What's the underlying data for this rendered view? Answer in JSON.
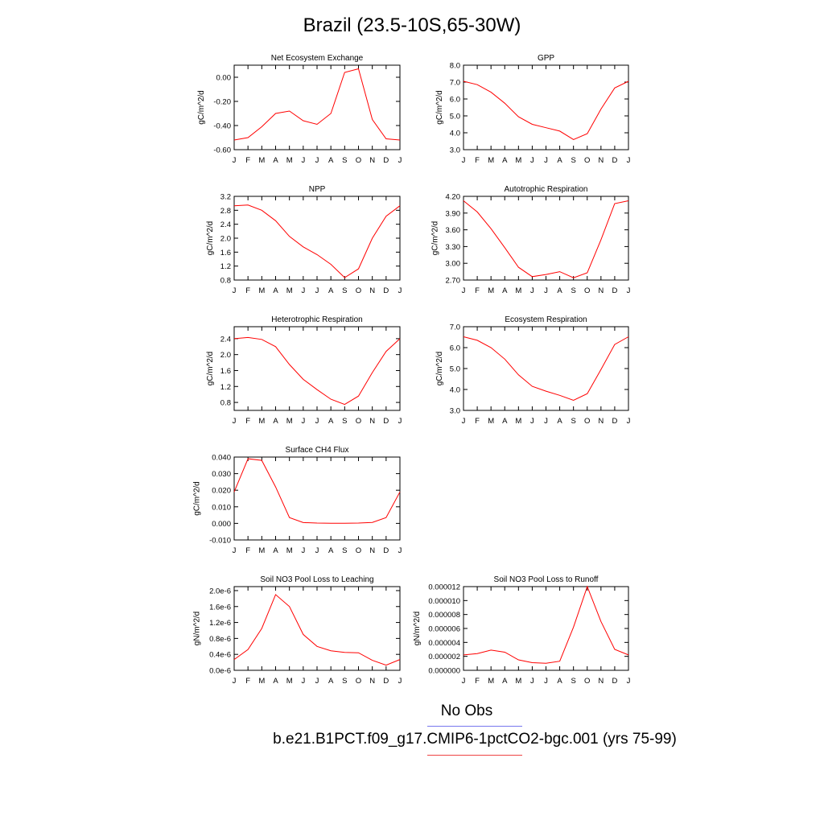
{
  "title": "Brazil (23.5-10S,65-30W)",
  "legend": {
    "items": [
      {
        "label": "No Obs",
        "color": "#7777ee"
      },
      {
        "label": "b.e21.B1PCT.f09_g17.CMIP6-1pctCO2-bgc.001 (yrs 75-99)",
        "color": "#ee4444"
      }
    ]
  },
  "chart_data": [
    {
      "type": "line",
      "title": "Net Ecosystem Exchange",
      "ylabel": "gC/m^2/d",
      "x": [
        "J",
        "F",
        "M",
        "A",
        "M",
        "J",
        "J",
        "A",
        "S",
        "O",
        "N",
        "D",
        "J"
      ],
      "ylim": [
        -0.6,
        0.1
      ],
      "yticks": [
        "0.00",
        "-0.20",
        "-0.40",
        "-0.60"
      ],
      "ytick_values": [
        0.0,
        -0.2,
        -0.4,
        -0.6
      ],
      "series": [
        {
          "color": "#ff0000",
          "values": [
            -0.52,
            -0.5,
            -0.41,
            -0.3,
            -0.28,
            -0.36,
            -0.39,
            -0.3,
            0.04,
            0.07,
            -0.35,
            -0.51,
            -0.52
          ]
        }
      ]
    },
    {
      "type": "line",
      "title": "GPP",
      "ylabel": "gC/m^2/d",
      "x": [
        "J",
        "F",
        "M",
        "A",
        "M",
        "J",
        "J",
        "A",
        "S",
        "O",
        "N",
        "D",
        "J"
      ],
      "ylim": [
        3.0,
        8.0
      ],
      "yticks": [
        "8.0",
        "7.0",
        "6.0",
        "5.0",
        "4.0",
        "3.0"
      ],
      "ytick_values": [
        8,
        7,
        6,
        5,
        4,
        3
      ],
      "series": [
        {
          "color": "#ff0000",
          "values": [
            7.05,
            6.85,
            6.4,
            5.75,
            4.95,
            4.5,
            4.3,
            4.1,
            3.6,
            3.95,
            5.4,
            6.65,
            7.05
          ]
        }
      ]
    },
    {
      "type": "line",
      "title": "NPP",
      "ylabel": "gC/m^2/d",
      "x": [
        "J",
        "F",
        "M",
        "A",
        "M",
        "J",
        "J",
        "A",
        "S",
        "O",
        "N",
        "D",
        "J"
      ],
      "ylim": [
        0.8,
        3.2
      ],
      "yticks": [
        "3.2",
        "2.8",
        "2.4",
        "2.0",
        "1.6",
        "1.2",
        "0.8"
      ],
      "ytick_values": [
        3.2,
        2.8,
        2.4,
        2.0,
        1.6,
        1.2,
        0.8
      ],
      "series": [
        {
          "color": "#ff0000",
          "values": [
            2.93,
            2.95,
            2.8,
            2.5,
            2.05,
            1.75,
            1.53,
            1.25,
            0.87,
            1.12,
            2.0,
            2.63,
            2.93
          ]
        }
      ]
    },
    {
      "type": "line",
      "title": "Autotrophic Respiration",
      "ylabel": "gC/m^2/d",
      "x": [
        "J",
        "F",
        "M",
        "A",
        "M",
        "J",
        "J",
        "A",
        "S",
        "O",
        "N",
        "D",
        "J"
      ],
      "ylim": [
        2.7,
        4.2
      ],
      "yticks": [
        "4.20",
        "3.90",
        "3.60",
        "3.30",
        "3.00",
        "2.70"
      ],
      "ytick_values": [
        4.2,
        3.9,
        3.6,
        3.3,
        3.0,
        2.7
      ],
      "series": [
        {
          "color": "#ff0000",
          "values": [
            4.12,
            3.92,
            3.62,
            3.28,
            2.93,
            2.76,
            2.8,
            2.85,
            2.74,
            2.83,
            3.42,
            4.07,
            4.12
          ]
        }
      ]
    },
    {
      "type": "line",
      "title": "Heterotrophic Respiration",
      "ylabel": "gC/m^2/d",
      "x": [
        "J",
        "F",
        "M",
        "A",
        "M",
        "J",
        "J",
        "A",
        "S",
        "O",
        "N",
        "D",
        "J"
      ],
      "ylim": [
        0.6,
        2.7
      ],
      "yticks": [
        "2.4",
        "2.0",
        "1.6",
        "1.2",
        "0.8"
      ],
      "ytick_values": [
        2.4,
        2.0,
        1.6,
        1.2,
        0.8
      ],
      "series": [
        {
          "color": "#ff0000",
          "values": [
            2.4,
            2.43,
            2.38,
            2.2,
            1.75,
            1.38,
            1.12,
            0.88,
            0.75,
            0.96,
            1.55,
            2.08,
            2.4
          ]
        }
      ]
    },
    {
      "type": "line",
      "title": "Ecosystem Respiration",
      "ylabel": "gC/m^2/d",
      "x": [
        "J",
        "F",
        "M",
        "A",
        "M",
        "J",
        "J",
        "A",
        "S",
        "O",
        "N",
        "D",
        "J"
      ],
      "ylim": [
        3.0,
        7.0
      ],
      "yticks": [
        "7.0",
        "6.0",
        "5.0",
        "4.0",
        "3.0"
      ],
      "ytick_values": [
        7,
        6,
        5,
        4,
        3
      ],
      "series": [
        {
          "color": "#ff0000",
          "values": [
            6.52,
            6.35,
            6.0,
            5.45,
            4.7,
            4.15,
            3.92,
            3.72,
            3.48,
            3.8,
            4.95,
            6.15,
            6.52
          ]
        }
      ]
    },
    {
      "type": "line",
      "title": "Surface CH4 Flux",
      "ylabel": "gC/m^2/d",
      "x": [
        "J",
        "F",
        "M",
        "A",
        "M",
        "J",
        "J",
        "A",
        "S",
        "O",
        "N",
        "D",
        "J"
      ],
      "ylim": [
        -0.01,
        0.04
      ],
      "yticks": [
        "0.040",
        "0.030",
        "0.020",
        "0.010",
        "0.000",
        "-0.010"
      ],
      "ytick_values": [
        0.04,
        0.03,
        0.02,
        0.01,
        0.0,
        -0.01
      ],
      "series": [
        {
          "color": "#ff0000",
          "values": [
            0.019,
            0.039,
            0.038,
            0.022,
            0.0035,
            0.0005,
            0.0002,
            0.0001,
            0.0001,
            0.0002,
            0.0006,
            0.0035,
            0.019
          ]
        }
      ]
    },
    {
      "type": "line",
      "title": "Soil NO3 Pool Loss to Leaching",
      "ylabel": "gN/m^2/d",
      "x": [
        "J",
        "F",
        "M",
        "A",
        "M",
        "J",
        "J",
        "A",
        "S",
        "O",
        "N",
        "D",
        "J"
      ],
      "ylim": [
        0.0,
        2.1e-06
      ],
      "yticks": [
        "2.0e-6",
        "1.6e-6",
        "1.2e-6",
        "0.8e-6",
        "0.4e-6",
        "0.0e-6"
      ],
      "ytick_values": [
        2e-06,
        1.6e-06,
        1.2e-06,
        8e-07,
        4e-07,
        0.0
      ],
      "series": [
        {
          "color": "#ff0000",
          "values": [
            2.7e-07,
            5.2e-07,
            1.05e-06,
            1.9e-06,
            1.6e-06,
            9e-07,
            6e-07,
            4.9e-07,
            4.5e-07,
            4.4e-07,
            2.5e-07,
            1.3e-07,
            2.7e-07
          ]
        }
      ]
    },
    {
      "type": "line",
      "title": "Soil NO3 Pool Loss to Runoff",
      "ylabel": "gN/m^2/d",
      "x": [
        "J",
        "F",
        "M",
        "A",
        "M",
        "J",
        "J",
        "A",
        "S",
        "O",
        "N",
        "D",
        "J"
      ],
      "ylim": [
        0.0,
        1.2e-05
      ],
      "yticks": [
        "0.000012",
        "0.000010",
        "0.000008",
        "0.000006",
        "0.000004",
        "0.000002",
        "0.000000"
      ],
      "ytick_values": [
        1.2e-05,
        1e-05,
        8e-06,
        6e-06,
        4e-06,
        2e-06,
        0.0
      ],
      "series": [
        {
          "color": "#ff0000",
          "values": [
            2.2e-06,
            2.4e-06,
            2.9e-06,
            2.6e-06,
            1.5e-06,
            1.1e-06,
            1e-06,
            1.3e-06,
            6.2e-06,
            1.2e-05,
            7e-06,
            3e-06,
            2.2e-06
          ]
        }
      ]
    }
  ]
}
